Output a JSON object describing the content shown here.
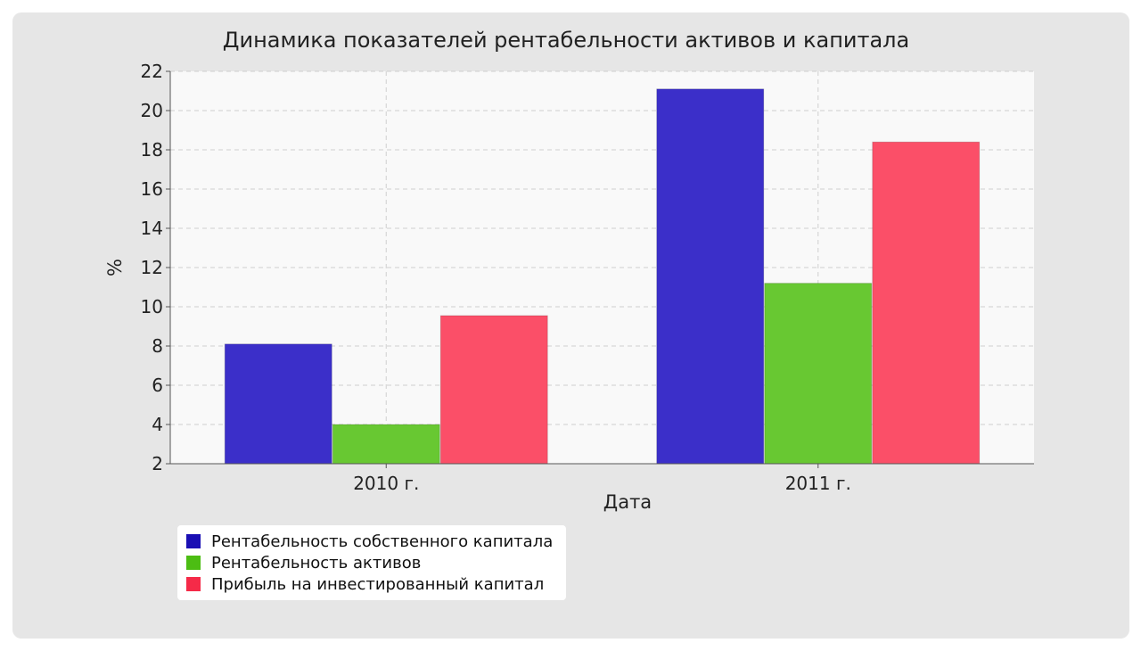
{
  "chart_data": {
    "type": "bar",
    "title": "Динамика показателей рентабельности активов и капитала",
    "xlabel": "Дата",
    "ylabel": "%",
    "categories": [
      "2010 г.",
      "2011 г."
    ],
    "ylim": [
      2,
      22
    ],
    "yticks": [
      2,
      4,
      6,
      8,
      10,
      12,
      14,
      16,
      18,
      20,
      22
    ],
    "grid": true,
    "legend_position": "bottom-left",
    "series": [
      {
        "name": "Рентабельность собственного капитала",
        "color": "#3b2fc9",
        "legend_color": "#1a0fb4",
        "values": [
          8.1,
          21.1
        ]
      },
      {
        "name": "Рентабельность активов",
        "color": "#68c832",
        "legend_color": "#4cbd13",
        "values": [
          4.0,
          11.2
        ]
      },
      {
        "name": "Прибыль на инвестированный капитал",
        "color": "#fb4f68",
        "legend_color": "#f52a48",
        "values": [
          9.55,
          18.4
        ]
      }
    ]
  }
}
